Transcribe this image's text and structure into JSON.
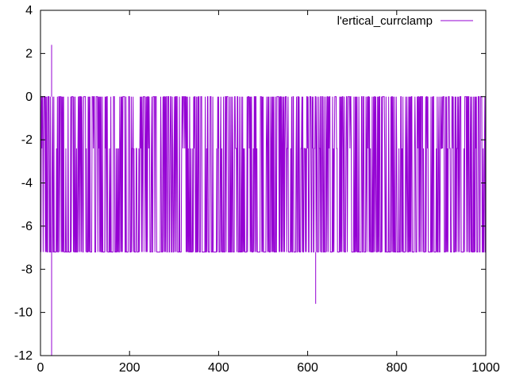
{
  "chart_data": {
    "type": "line",
    "title": "",
    "xlabel": "",
    "ylabel": "",
    "xlim": [
      0,
      1000
    ],
    "ylim": [
      -12,
      4
    ],
    "x_ticks": [
      0,
      200,
      400,
      600,
      800,
      1000
    ],
    "y_ticks": [
      4,
      2,
      0,
      -2,
      -4,
      -6,
      -8,
      -10,
      -12
    ],
    "grid": false,
    "legend_position": "top-right",
    "series": [
      {
        "name": "l'ertical_currclamp",
        "color": "#9400d3",
        "pattern": {
          "x_start": 0,
          "x_end": 1000,
          "x_step": 1,
          "levels": [
            0,
            -2.4,
            -7.2
          ],
          "typical_range": [
            -7.2,
            0
          ]
        },
        "spikes": [
          {
            "x": 25,
            "y": 2.4
          },
          {
            "x": 25,
            "y": -12
          },
          {
            "x": 618,
            "y": -9.6
          }
        ]
      }
    ]
  }
}
